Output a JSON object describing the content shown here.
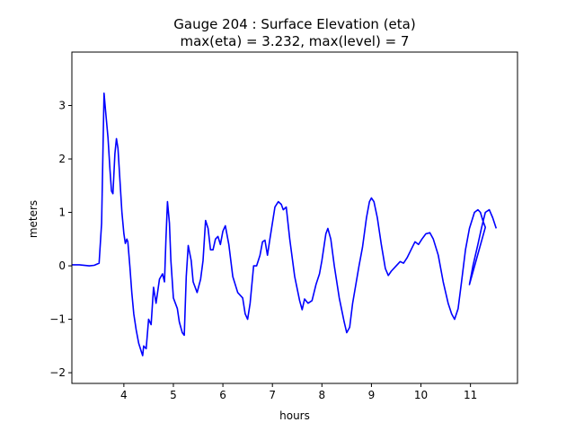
{
  "chart_data": {
    "type": "line",
    "title_line1": "Gauge 204 : Surface Elevation (eta)",
    "title_line2": "max(eta) =   3.232,    max(level) = 7",
    "xlabel": "hours",
    "ylabel": "meters",
    "xlim": [
      2.95,
      11.95
    ],
    "ylim": [
      -2.2,
      4.0
    ],
    "x_ticks": [
      4,
      5,
      6,
      7,
      8,
      9,
      10,
      11
    ],
    "x_tick_labels": [
      "4",
      "5",
      "6",
      "7",
      "8",
      "9",
      "10",
      "11"
    ],
    "y_ticks": [
      -2,
      -1,
      0,
      1,
      2,
      3
    ],
    "y_tick_labels": [
      "−2",
      "−1",
      "0",
      "1",
      "2",
      "3"
    ],
    "line_color": "#0000ff",
    "series": [
      {
        "name": "eta",
        "points": [
          [
            2.95,
            0.02
          ],
          [
            3.1,
            0.02
          ],
          [
            3.3,
            0.0
          ],
          [
            3.4,
            0.01
          ],
          [
            3.5,
            0.05
          ],
          [
            3.55,
            0.8
          ],
          [
            3.6,
            3.23
          ],
          [
            3.63,
            2.9
          ],
          [
            3.68,
            2.4
          ],
          [
            3.72,
            1.8
          ],
          [
            3.75,
            1.4
          ],
          [
            3.78,
            1.35
          ],
          [
            3.82,
            2.1
          ],
          [
            3.85,
            2.38
          ],
          [
            3.88,
            2.2
          ],
          [
            3.92,
            1.6
          ],
          [
            3.96,
            1.0
          ],
          [
            4.0,
            0.6
          ],
          [
            4.03,
            0.42
          ],
          [
            4.06,
            0.5
          ],
          [
            4.08,
            0.45
          ],
          [
            4.12,
            0.0
          ],
          [
            4.16,
            -0.5
          ],
          [
            4.2,
            -0.9
          ],
          [
            4.25,
            -1.2
          ],
          [
            4.3,
            -1.45
          ],
          [
            4.35,
            -1.6
          ],
          [
            4.38,
            -1.68
          ],
          [
            4.4,
            -1.5
          ],
          [
            4.45,
            -1.55
          ],
          [
            4.5,
            -1.0
          ],
          [
            4.55,
            -1.1
          ],
          [
            4.6,
            -0.4
          ],
          [
            4.65,
            -0.7
          ],
          [
            4.72,
            -0.25
          ],
          [
            4.78,
            -0.15
          ],
          [
            4.82,
            -0.3
          ],
          [
            4.85,
            0.5
          ],
          [
            4.88,
            1.2
          ],
          [
            4.92,
            0.8
          ],
          [
            4.95,
            0.1
          ],
          [
            5.0,
            -0.6
          ],
          [
            5.08,
            -0.8
          ],
          [
            5.12,
            -1.05
          ],
          [
            5.18,
            -1.25
          ],
          [
            5.22,
            -1.3
          ],
          [
            5.26,
            -0.2
          ],
          [
            5.3,
            0.38
          ],
          [
            5.36,
            0.1
          ],
          [
            5.4,
            -0.3
          ],
          [
            5.48,
            -0.5
          ],
          [
            5.55,
            -0.25
          ],
          [
            5.6,
            0.1
          ],
          [
            5.65,
            0.85
          ],
          [
            5.7,
            0.7
          ],
          [
            5.75,
            0.3
          ],
          [
            5.8,
            0.3
          ],
          [
            5.85,
            0.5
          ],
          [
            5.9,
            0.55
          ],
          [
            5.95,
            0.4
          ],
          [
            6.0,
            0.65
          ],
          [
            6.05,
            0.75
          ],
          [
            6.12,
            0.4
          ],
          [
            6.2,
            -0.2
          ],
          [
            6.3,
            -0.5
          ],
          [
            6.4,
            -0.6
          ],
          [
            6.45,
            -0.9
          ],
          [
            6.5,
            -1.0
          ],
          [
            6.55,
            -0.7
          ],
          [
            6.62,
            0.0
          ],
          [
            6.68,
            0.0
          ],
          [
            6.75,
            0.2
          ],
          [
            6.8,
            0.45
          ],
          [
            6.85,
            0.48
          ],
          [
            6.9,
            0.2
          ],
          [
            6.95,
            0.5
          ],
          [
            7.05,
            1.1
          ],
          [
            7.12,
            1.2
          ],
          [
            7.18,
            1.15
          ],
          [
            7.22,
            1.05
          ],
          [
            7.28,
            1.1
          ],
          [
            7.35,
            0.5
          ],
          [
            7.45,
            -0.2
          ],
          [
            7.55,
            -0.65
          ],
          [
            7.6,
            -0.82
          ],
          [
            7.65,
            -0.62
          ],
          [
            7.72,
            -0.7
          ],
          [
            7.8,
            -0.65
          ],
          [
            7.88,
            -0.35
          ],
          [
            7.95,
            -0.15
          ],
          [
            8.0,
            0.1
          ],
          [
            8.08,
            0.6
          ],
          [
            8.12,
            0.7
          ],
          [
            8.18,
            0.5
          ],
          [
            8.25,
            0.0
          ],
          [
            8.35,
            -0.6
          ],
          [
            8.45,
            -1.05
          ],
          [
            8.5,
            -1.25
          ],
          [
            8.56,
            -1.15
          ],
          [
            8.62,
            -0.7
          ],
          [
            8.75,
            0.0
          ],
          [
            8.82,
            0.35
          ],
          [
            8.9,
            0.9
          ],
          [
            8.96,
            1.2
          ],
          [
            9.0,
            1.27
          ],
          [
            9.05,
            1.2
          ],
          [
            9.12,
            0.9
          ],
          [
            9.2,
            0.4
          ],
          [
            9.28,
            -0.05
          ],
          [
            9.34,
            -0.18
          ],
          [
            9.4,
            -0.1
          ],
          [
            9.5,
            0.0
          ],
          [
            9.58,
            0.08
          ],
          [
            9.65,
            0.05
          ],
          [
            9.72,
            0.15
          ],
          [
            9.8,
            0.3
          ],
          [
            9.88,
            0.45
          ],
          [
            9.95,
            0.4
          ],
          [
            10.02,
            0.5
          ],
          [
            10.1,
            0.6
          ],
          [
            10.18,
            0.62
          ],
          [
            10.25,
            0.5
          ],
          [
            10.35,
            0.2
          ],
          [
            10.45,
            -0.3
          ],
          [
            10.55,
            -0.7
          ],
          [
            10.62,
            -0.9
          ],
          [
            10.68,
            -1.0
          ],
          [
            10.75,
            -0.8
          ],
          [
            10.82,
            -0.3
          ],
          [
            10.9,
            0.3
          ],
          [
            10.98,
            0.7
          ],
          [
            11.08,
            1.0
          ],
          [
            11.15,
            1.05
          ],
          [
            11.2,
            1.0
          ],
          [
            11.25,
            0.85
          ],
          [
            11.3,
            0.72
          ],
          [
            10.98,
            -0.35
          ],
          [
            11.05,
            0.0
          ],
          [
            11.15,
            0.4
          ],
          [
            11.22,
            0.7
          ],
          [
            11.3,
            1.0
          ],
          [
            11.38,
            1.05
          ],
          [
            11.45,
            0.9
          ],
          [
            11.52,
            0.7
          ]
        ]
      }
    ]
  }
}
